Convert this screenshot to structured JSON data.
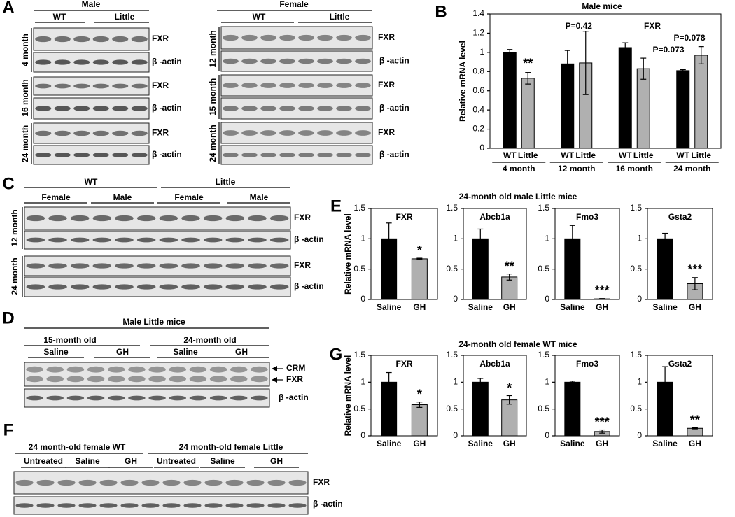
{
  "panel_labels": [
    "A",
    "B",
    "C",
    "D",
    "E",
    "F",
    "G"
  ],
  "panel_titles": {
    "E": "24-month old male Little mice",
    "G": "24-month old female WT mice"
  },
  "blots": {
    "A_male": {
      "title": "Male",
      "groups": [
        "WT",
        "Little"
      ],
      "rows": [
        "4 month",
        "16 month",
        "24 month"
      ],
      "bands": [
        "FXR",
        "β -actin"
      ]
    },
    "A_female": {
      "title": "Female",
      "groups": [
        "WT",
        "Little"
      ],
      "rows": [
        "12 month",
        "15 month",
        "24 month"
      ],
      "bands": [
        "FXR",
        "β -actin"
      ]
    },
    "C": {
      "groups": [
        "WT",
        "Little"
      ],
      "subgroups": [
        "Female",
        "Male",
        "Female",
        "Male"
      ],
      "rows": [
        "12 month",
        "24 month"
      ],
      "bands": [
        "FXR",
        "β -actin"
      ]
    },
    "D": {
      "title": "Male Little mice",
      "groups": [
        "15-month old",
        "24-month old"
      ],
      "subgroups": [
        "Saline",
        "GH",
        "Saline",
        "GH"
      ],
      "bands": [
        "CRM",
        "FXR",
        "β -actin"
      ]
    },
    "F": {
      "groups": [
        "24 month-old female WT",
        "24 month-old female Little"
      ],
      "subgroups": [
        "Untreated",
        "Saline",
        "GH",
        "Untreated",
        "Saline",
        "GH"
      ],
      "bands": [
        "FXR",
        "β -actin"
      ]
    }
  },
  "chart_data": [
    {
      "type": "bar",
      "title": "Male mice",
      "ylabel": "Relative  mRNA level",
      "categories": [
        "4 month",
        "12 month",
        "16 month",
        "24 month"
      ],
      "series": [
        {
          "name": "WT",
          "color": "#000000",
          "values": [
            1.0,
            0.88,
            1.05,
            0.81
          ],
          "errors": [
            0.03,
            0.14,
            0.05,
            0.01
          ]
        },
        {
          "name": "Little",
          "color": "#b0b0b0",
          "values": [
            0.73,
            0.89,
            0.83,
            0.97
          ],
          "errors": [
            0.06,
            0.33,
            0.11,
            0.09
          ]
        }
      ],
      "annotations": [
        "**",
        "P=0.42",
        "FXR",
        "P=0.073",
        "P=0.078"
      ],
      "ylim": [
        0,
        1.4
      ],
      "yticks": [
        0,
        0.2,
        0.4,
        0.6,
        0.8,
        1,
        1.2,
        1.4
      ]
    },
    {
      "type": "bar",
      "title": "FXR",
      "ylabel": "Relative  mRNA level",
      "categories": [
        "Saline",
        "GH"
      ],
      "values": [
        1.0,
        0.67
      ],
      "errors": [
        0.26,
        0.01
      ],
      "colors": [
        "#000000",
        "#b0b0b0"
      ],
      "annotation": "*",
      "ylim": [
        0,
        1.5
      ],
      "yticks": [
        0,
        0.5,
        1,
        1.5
      ]
    },
    {
      "type": "bar",
      "title": "Abcb1a",
      "categories": [
        "Saline",
        "GH"
      ],
      "values": [
        1.0,
        0.37
      ],
      "errors": [
        0.16,
        0.05
      ],
      "colors": [
        "#000000",
        "#b0b0b0"
      ],
      "annotation": "**",
      "ylim": [
        0,
        1.5
      ],
      "yticks": [
        0,
        0.5,
        1,
        1.5
      ]
    },
    {
      "type": "bar",
      "title": "Fmo3",
      "categories": [
        "Saline",
        "GH"
      ],
      "values": [
        1.0,
        0.01
      ],
      "errors": [
        0.22,
        0.005
      ],
      "colors": [
        "#000000",
        "#b0b0b0"
      ],
      "annotation": "***",
      "ylim": [
        0,
        1.5
      ],
      "yticks": [
        0,
        0.5,
        1,
        1.5
      ]
    },
    {
      "type": "bar",
      "title": "Gsta2",
      "categories": [
        "Saline",
        "GH"
      ],
      "values": [
        1.0,
        0.26
      ],
      "errors": [
        0.09,
        0.1
      ],
      "colors": [
        "#000000",
        "#b0b0b0"
      ],
      "annotation": "***",
      "ylim": [
        0,
        1.5
      ],
      "yticks": [
        0,
        0.5,
        1,
        1.5
      ]
    },
    {
      "type": "bar",
      "title": "FXR",
      "ylabel": "Relative  mRNA level",
      "categories": [
        "Saline",
        "GH"
      ],
      "values": [
        1.0,
        0.58
      ],
      "errors": [
        0.18,
        0.05
      ],
      "colors": [
        "#000000",
        "#b0b0b0"
      ],
      "annotation": "*",
      "ylim": [
        0,
        1.5
      ],
      "yticks": [
        0,
        0.5,
        1,
        1.5
      ]
    },
    {
      "type": "bar",
      "title": "Abcb1a",
      "categories": [
        "Saline",
        "GH"
      ],
      "values": [
        1.0,
        0.67
      ],
      "errors": [
        0.07,
        0.08
      ],
      "colors": [
        "#000000",
        "#b0b0b0"
      ],
      "annotation": "*",
      "ylim": [
        0,
        1.5
      ],
      "yticks": [
        0,
        0.5,
        1,
        1.5
      ]
    },
    {
      "type": "bar",
      "title": "Fmo3",
      "categories": [
        "Saline",
        "GH"
      ],
      "values": [
        1.0,
        0.08
      ],
      "errors": [
        0.02,
        0.03
      ],
      "colors": [
        "#000000",
        "#b0b0b0"
      ],
      "annotation": "***",
      "ylim": [
        0,
        1.5
      ],
      "yticks": [
        0,
        0.5,
        1,
        1.5
      ]
    },
    {
      "type": "bar",
      "title": "Gsta2",
      "categories": [
        "Saline",
        "GH"
      ],
      "values": [
        1.0,
        0.14
      ],
      "errors": [
        0.29,
        0.01
      ],
      "colors": [
        "#000000",
        "#b0b0b0"
      ],
      "annotation": "**",
      "ylim": [
        0,
        1.5
      ],
      "yticks": [
        0,
        0.5,
        1,
        1.5
      ]
    }
  ]
}
